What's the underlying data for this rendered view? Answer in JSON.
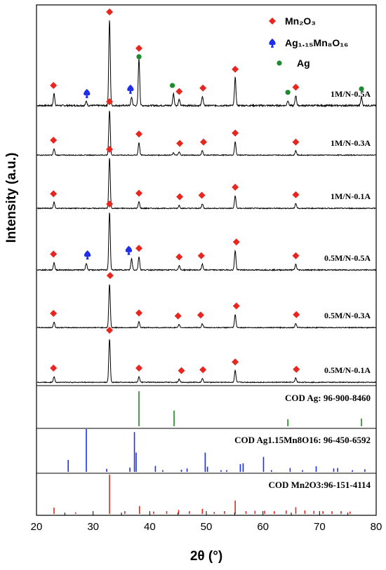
{
  "chart_data": {
    "type": "line",
    "xlabel": "2θ (°)",
    "ylabel": "Intensity (a.u.)",
    "xlim": [
      20,
      80
    ],
    "xticks": [
      "20",
      "30",
      "40",
      "50",
      "60",
      "70",
      "80"
    ],
    "legend": {
      "placement": "top-right",
      "items": [
        {
          "label": "Mn₂O₃",
          "marker": "diamond",
          "color": "#e8261f"
        },
        {
          "label": "Ag₁.₁₅Mn₈O₁₆",
          "marker": "spade",
          "color": "#1f2ee8"
        },
        {
          "label": "Ag",
          "marker": "circle",
          "color": "#1e8a2e"
        }
      ]
    },
    "series": [
      {
        "name": "1M/N-0.5A",
        "peaks": [
          {
            "x": 23.1,
            "h": 0.14
          },
          {
            "x": 28.8,
            "h": 0.05
          },
          {
            "x": 32.9,
            "h": 1.0
          },
          {
            "x": 36.8,
            "h": 0.1
          },
          {
            "x": 38.1,
            "h": 0.55
          },
          {
            "x": 44.2,
            "h": 0.14
          },
          {
            "x": 45.2,
            "h": 0.07
          },
          {
            "x": 49.3,
            "h": 0.11
          },
          {
            "x": 55.1,
            "h": 0.33
          },
          {
            "x": 64.4,
            "h": 0.06
          },
          {
            "x": 65.8,
            "h": 0.12
          },
          {
            "x": 77.4,
            "h": 0.1
          }
        ],
        "markers": [
          {
            "x": 23.0,
            "type": "Mn2O3"
          },
          {
            "x": 28.9,
            "type": "AgMnO"
          },
          {
            "x": 32.9,
            "type": "Mn2O3"
          },
          {
            "x": 36.6,
            "type": "AgMnO"
          },
          {
            "x": 38.1,
            "type": "Mn2O3"
          },
          {
            "x": 38.1,
            "type": "Ag"
          },
          {
            "x": 44.0,
            "type": "Ag"
          },
          {
            "x": 45.2,
            "type": "Mn2O3"
          },
          {
            "x": 49.4,
            "type": "Mn2O3"
          },
          {
            "x": 55.1,
            "type": "Mn2O3"
          },
          {
            "x": 64.4,
            "type": "Ag"
          },
          {
            "x": 65.8,
            "type": "Mn2O3"
          },
          {
            "x": 77.4,
            "type": "Ag"
          }
        ]
      },
      {
        "name": "1M/N-0.3A",
        "peaks": [
          {
            "x": 23.1,
            "h": 0.14
          },
          {
            "x": 32.9,
            "h": 1.0
          },
          {
            "x": 38.1,
            "h": 0.28
          },
          {
            "x": 44.2,
            "h": 0.05
          },
          {
            "x": 45.2,
            "h": 0.07
          },
          {
            "x": 49.3,
            "h": 0.1
          },
          {
            "x": 55.1,
            "h": 0.3
          },
          {
            "x": 65.8,
            "h": 0.1
          }
        ],
        "markers": [
          {
            "x": 23.0,
            "type": "Mn2O3"
          },
          {
            "x": 32.9,
            "type": "Mn2O3"
          },
          {
            "x": 38.1,
            "type": "Mn2O3"
          },
          {
            "x": 45.3,
            "type": "Mn2O3"
          },
          {
            "x": 49.5,
            "type": "Mn2O3"
          },
          {
            "x": 55.1,
            "type": "Mn2O3"
          },
          {
            "x": 65.8,
            "type": "Mn2O3"
          }
        ]
      },
      {
        "name": "1M/N-0.1A",
        "peaks": [
          {
            "x": 23.1,
            "h": 0.12
          },
          {
            "x": 32.9,
            "h": 1.0
          },
          {
            "x": 38.1,
            "h": 0.13
          },
          {
            "x": 45.2,
            "h": 0.06
          },
          {
            "x": 49.3,
            "h": 0.09
          },
          {
            "x": 55.1,
            "h": 0.25
          },
          {
            "x": 65.8,
            "h": 0.1
          }
        ],
        "markers": [
          {
            "x": 23.0,
            "type": "Mn2O3"
          },
          {
            "x": 32.9,
            "type": "Mn2O3"
          },
          {
            "x": 38.1,
            "type": "Mn2O3"
          },
          {
            "x": 45.3,
            "type": "Mn2O3"
          },
          {
            "x": 49.2,
            "type": "Mn2O3"
          },
          {
            "x": 55.1,
            "type": "Mn2O3"
          },
          {
            "x": 65.8,
            "type": "Mn2O3"
          }
        ]
      },
      {
        "name": "0.5M/N-0.5A",
        "peaks": [
          {
            "x": 23.1,
            "h": 0.13
          },
          {
            "x": 28.8,
            "h": 0.12
          },
          {
            "x": 32.9,
            "h": 1.0
          },
          {
            "x": 36.8,
            "h": 0.2
          },
          {
            "x": 38.1,
            "h": 0.23
          },
          {
            "x": 45.2,
            "h": 0.08
          },
          {
            "x": 49.3,
            "h": 0.1
          },
          {
            "x": 55.1,
            "h": 0.34
          },
          {
            "x": 65.8,
            "h": 0.1
          }
        ],
        "markers": [
          {
            "x": 23.0,
            "type": "Mn2O3"
          },
          {
            "x": 29.0,
            "type": "AgMnO"
          },
          {
            "x": 32.9,
            "type": "Mn2O3"
          },
          {
            "x": 36.3,
            "type": "AgMnO"
          },
          {
            "x": 38.1,
            "type": "Mn2O3"
          },
          {
            "x": 45.2,
            "type": "Mn2O3"
          },
          {
            "x": 49.1,
            "type": "Mn2O3"
          },
          {
            "x": 55.3,
            "type": "Mn2O3"
          },
          {
            "x": 65.8,
            "type": "Mn2O3"
          }
        ]
      },
      {
        "name": "0.5M/N-0.3A",
        "peaks": [
          {
            "x": 23.1,
            "h": 0.13
          },
          {
            "x": 32.9,
            "h": 1.0
          },
          {
            "x": 38.1,
            "h": 0.14
          },
          {
            "x": 45.2,
            "h": 0.07
          },
          {
            "x": 49.3,
            "h": 0.09
          },
          {
            "x": 55.1,
            "h": 0.3
          },
          {
            "x": 65.8,
            "h": 0.1
          }
        ],
        "markers": [
          {
            "x": 23.0,
            "type": "Mn2O3"
          },
          {
            "x": 33.0,
            "type": "Mn2O3"
          },
          {
            "x": 38.1,
            "type": "Mn2O3"
          },
          {
            "x": 45.0,
            "type": "Mn2O3"
          },
          {
            "x": 49.0,
            "type": "Mn2O3"
          },
          {
            "x": 55.3,
            "type": "Mn2O3"
          },
          {
            "x": 65.9,
            "type": "Mn2O3"
          }
        ]
      },
      {
        "name": "0.5M/N-0.1A",
        "peaks": [
          {
            "x": 23.1,
            "h": 0.13
          },
          {
            "x": 32.9,
            "h": 1.0
          },
          {
            "x": 38.1,
            "h": 0.13
          },
          {
            "x": 45.2,
            "h": 0.07
          },
          {
            "x": 49.3,
            "h": 0.09
          },
          {
            "x": 55.1,
            "h": 0.27
          },
          {
            "x": 65.8,
            "h": 0.1
          }
        ],
        "markers": [
          {
            "x": 23.0,
            "type": "Mn2O3"
          },
          {
            "x": 32.9,
            "type": "Mn2O3"
          },
          {
            "x": 38.1,
            "type": "Mn2O3"
          },
          {
            "x": 45.6,
            "type": "Mn2O3"
          },
          {
            "x": 49.4,
            "type": "Mn2O3"
          },
          {
            "x": 55.1,
            "type": "Mn2O3"
          },
          {
            "x": 65.9,
            "type": "Mn2O3"
          }
        ]
      }
    ],
    "references": [
      {
        "label": "COD Ag: 96-900-8460",
        "color": "#1e8a1e",
        "lines": [
          {
            "x": 38.1,
            "h": 1.0
          },
          {
            "x": 44.3,
            "h": 0.45
          },
          {
            "x": 64.4,
            "h": 0.2
          },
          {
            "x": 77.4,
            "h": 0.22
          }
        ]
      },
      {
        "label": "COD Ag1.15Mn8O16: 96-450-6592",
        "color": "#1f2ee8",
        "lines": [
          {
            "x": 25.6,
            "h": 0.28
          },
          {
            "x": 28.8,
            "h": 1.0
          },
          {
            "x": 32.4,
            "h": 0.07
          },
          {
            "x": 36.5,
            "h": 0.1
          },
          {
            "x": 37.3,
            "h": 0.93
          },
          {
            "x": 37.6,
            "h": 0.45
          },
          {
            "x": 41.0,
            "h": 0.14
          },
          {
            "x": 42.3,
            "h": 0.04
          },
          {
            "x": 45.6,
            "h": 0.05
          },
          {
            "x": 46.6,
            "h": 0.08
          },
          {
            "x": 49.8,
            "h": 0.45
          },
          {
            "x": 50.2,
            "h": 0.12
          },
          {
            "x": 52.6,
            "h": 0.04
          },
          {
            "x": 53.6,
            "h": 0.04
          },
          {
            "x": 56.0,
            "h": 0.18
          },
          {
            "x": 56.5,
            "h": 0.2
          },
          {
            "x": 60.1,
            "h": 0.35
          },
          {
            "x": 61.5,
            "h": 0.04
          },
          {
            "x": 64.8,
            "h": 0.09
          },
          {
            "x": 67.0,
            "h": 0.04
          },
          {
            "x": 69.4,
            "h": 0.13
          },
          {
            "x": 72.5,
            "h": 0.08
          },
          {
            "x": 73.2,
            "h": 0.09
          },
          {
            "x": 75.8,
            "h": 0.04
          },
          {
            "x": 78.0,
            "h": 0.06
          }
        ]
      },
      {
        "label": "COD Mn2O3:96-151-4114",
        "color": "#e8261f",
        "lines": [
          {
            "x": 23.1,
            "h": 0.16
          },
          {
            "x": 26.9,
            "h": 0.04
          },
          {
            "x": 32.9,
            "h": 1.0
          },
          {
            "x": 35.6,
            "h": 0.07
          },
          {
            "x": 38.2,
            "h": 0.2
          },
          {
            "x": 40.7,
            "h": 0.06
          },
          {
            "x": 43.0,
            "h": 0.07
          },
          {
            "x": 45.1,
            "h": 0.1
          },
          {
            "x": 47.0,
            "h": 0.07
          },
          {
            "x": 49.3,
            "h": 0.13
          },
          {
            "x": 51.4,
            "h": 0.05
          },
          {
            "x": 53.2,
            "h": 0.07
          },
          {
            "x": 55.1,
            "h": 0.34
          },
          {
            "x": 57.0,
            "h": 0.07
          },
          {
            "x": 58.6,
            "h": 0.08
          },
          {
            "x": 60.3,
            "h": 0.08
          },
          {
            "x": 62.0,
            "h": 0.07
          },
          {
            "x": 64.1,
            "h": 0.09
          },
          {
            "x": 65.8,
            "h": 0.17
          },
          {
            "x": 67.4,
            "h": 0.09
          },
          {
            "x": 69.0,
            "h": 0.08
          },
          {
            "x": 70.6,
            "h": 0.07
          },
          {
            "x": 72.2,
            "h": 0.07
          },
          {
            "x": 73.8,
            "h": 0.07
          },
          {
            "x": 75.4,
            "h": 0.06
          }
        ]
      }
    ]
  }
}
